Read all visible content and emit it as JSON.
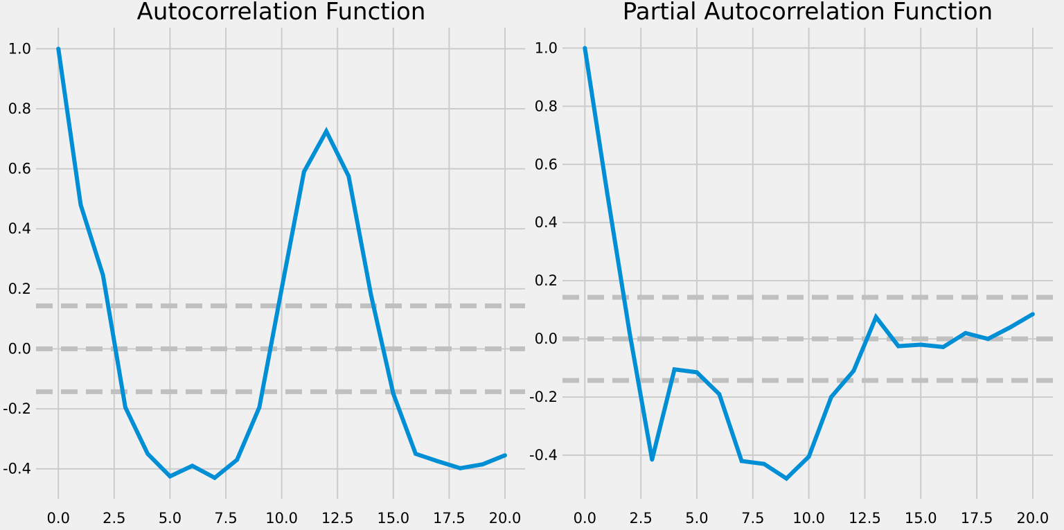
{
  "chart_data": [
    {
      "type": "line",
      "title": "Autocorrelation Function",
      "xlabel": "",
      "ylabel": "",
      "xlim": [
        -1,
        20.9
      ],
      "ylim": [
        -0.5,
        1.07
      ],
      "xticks": [
        "0.0",
        "2.5",
        "5.0",
        "7.5",
        "10.0",
        "12.5",
        "15.0",
        "17.5",
        "20.0"
      ],
      "yticks": [
        "-0.4",
        "-0.2",
        "0.0",
        "0.2",
        "0.4",
        "0.6",
        "0.8",
        "1.0"
      ],
      "grid": true,
      "x": [
        0,
        1,
        2,
        3,
        4,
        5,
        6,
        7,
        8,
        9,
        10,
        11,
        12,
        13,
        14,
        15,
        16,
        17,
        18,
        19,
        20
      ],
      "series": [
        {
          "values": [
            1.0,
            0.48,
            0.245,
            -0.195,
            -0.35,
            -0.425,
            -0.39,
            -0.43,
            -0.37,
            -0.195,
            0.2,
            0.59,
            0.725,
            0.575,
            0.18,
            -0.15,
            -0.35,
            -0.375,
            -0.398,
            -0.385,
            -0.355
          ],
          "color": "#008fd5"
        }
      ],
      "reference_lines": [
        {
          "y": 0.143,
          "style": "dashed",
          "color": "#c0c0c0"
        },
        {
          "y": 0.0,
          "style": "dashed",
          "color": "#c0c0c0"
        },
        {
          "y": -0.143,
          "style": "dashed",
          "color": "#c0c0c0"
        }
      ]
    },
    {
      "type": "line",
      "title": "Partial Autocorrelation Function",
      "xlabel": "",
      "ylabel": "",
      "xlim": [
        -1,
        20.9
      ],
      "ylim": [
        -0.55,
        1.07
      ],
      "xticks": [
        "0.0",
        "2.5",
        "5.0",
        "7.5",
        "10.0",
        "12.5",
        "15.0",
        "17.5",
        "20.0"
      ],
      "yticks": [
        "-0.4",
        "-0.2",
        "0.0",
        "0.2",
        "0.4",
        "0.6",
        "0.8",
        "1.0"
      ],
      "grid": true,
      "x": [
        0,
        1,
        2,
        3,
        4,
        5,
        6,
        7,
        8,
        9,
        10,
        11,
        12,
        13,
        14,
        15,
        16,
        17,
        18,
        19,
        20
      ],
      "series": [
        {
          "values": [
            1.0,
            0.5,
            0.02,
            -0.415,
            -0.105,
            -0.115,
            -0.19,
            -0.42,
            -0.43,
            -0.48,
            -0.405,
            -0.2,
            -0.11,
            0.075,
            -0.025,
            -0.02,
            -0.028,
            0.02,
            0.0,
            0.04,
            0.085
          ],
          "color": "#008fd5"
        }
      ],
      "reference_lines": [
        {
          "y": 0.143,
          "style": "dashed",
          "color": "#c0c0c0"
        },
        {
          "y": 0.0,
          "style": "dashed",
          "color": "#c0c0c0"
        },
        {
          "y": -0.143,
          "style": "dashed",
          "color": "#c0c0c0"
        }
      ]
    }
  ]
}
